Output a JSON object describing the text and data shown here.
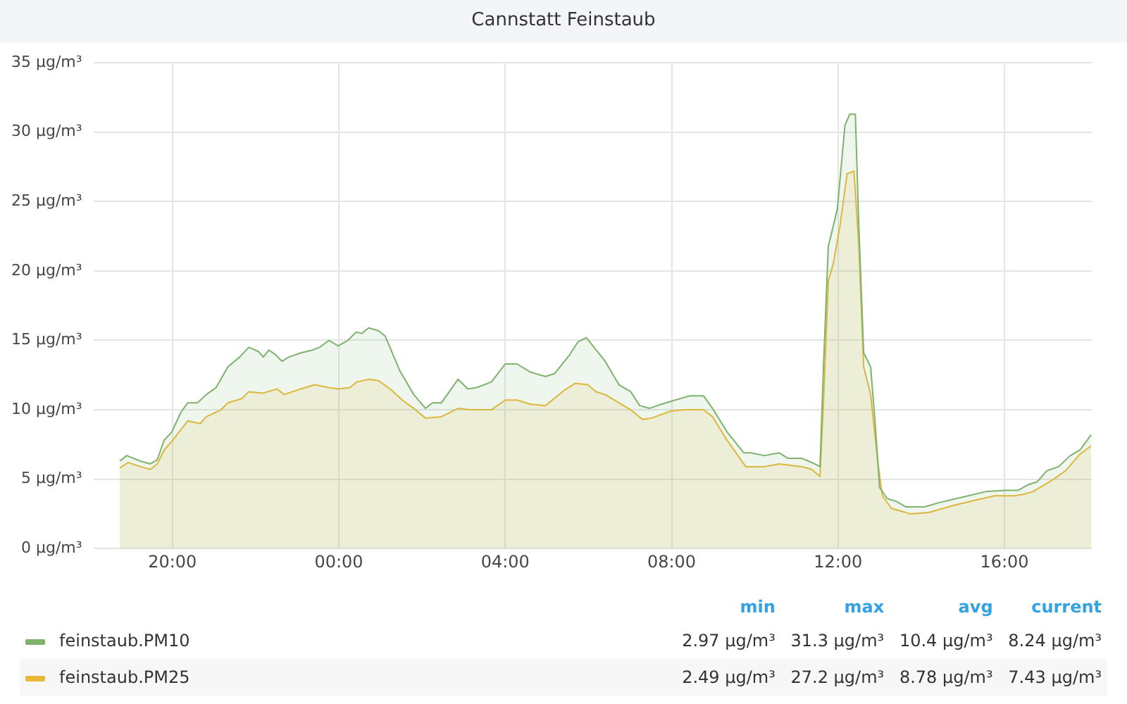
{
  "chart_data": {
    "type": "area",
    "title": "Cannstatt Feinstaub",
    "xlim": [
      "--01-01T18:06",
      "--01-02T18:06"
    ],
    "xticks": [
      {
        "value": "--01-01T20:00",
        "label": "20:00"
      },
      {
        "value": "--01-02T00:00",
        "label": "00:00"
      },
      {
        "value": "--01-02T04:00",
        "label": "04:00"
      },
      {
        "value": "--01-02T08:00",
        "label": "08:00"
      },
      {
        "value": "--01-02T12:00",
        "label": "12:00"
      },
      {
        "value": "--01-02T16:00",
        "label": "16:00"
      }
    ],
    "ylim": [
      0,
      35
    ],
    "yticks": [
      {
        "value": 0,
        "label": "0 µg/m³"
      },
      {
        "value": 5,
        "label": "5 µg/m³"
      },
      {
        "value": 10,
        "label": "10 µg/m³"
      },
      {
        "value": 15,
        "label": "15 µg/m³"
      },
      {
        "value": 20,
        "label": "20 µg/m³"
      },
      {
        "value": 25,
        "label": "25 µg/m³"
      },
      {
        "value": 30,
        "label": "30 µg/m³"
      },
      {
        "value": 35,
        "label": "35 µg/m³"
      }
    ],
    "grid": true,
    "legend": "bottom",
    "marker": "none",
    "line_style": "solid",
    "series": [
      {
        "name": "feinstaub.PM10",
        "color": "#7eb26d",
        "x": [
          "--01-01T18:44",
          "--01-01T18:54",
          "--01-01T19:14",
          "--01-01T19:28",
          "--01-01T19:38",
          "--01-01T19:48",
          "--01-01T19:59",
          "--01-01T20:12",
          "--01-01T20:22",
          "--01-01T20:36",
          "--01-01T20:49",
          "--01-01T21:03",
          "--01-01T21:20",
          "--01-01T21:37",
          "--01-01T21:50",
          "--01-01T22:04",
          "--01-01T22:11",
          "--01-01T22:19",
          "--01-01T22:28",
          "--01-01T22:38",
          "--01-01T22:48",
          "--01-01T23:05",
          "--01-01T23:22",
          "--01-01T23:32",
          "--01-01T23:46",
          "--01-01T23:59",
          "--01-02T00:13",
          "--01-02T00:25",
          "--01-02T00:33",
          "--01-02T00:43",
          "--01-02T00:57",
          "--01-02T01:07",
          "--01-02T01:28",
          "--01-02T01:48",
          "--01-02T02:05",
          "--01-02T02:15",
          "--01-02T02:28",
          "--01-02T02:52",
          "--01-02T03:06",
          "--01-02T03:19",
          "--01-02T03:40",
          "--01-02T04:00",
          "--01-02T04:17",
          "--01-02T04:37",
          "--01-02T04:58",
          "--01-02T05:11",
          "--01-02T05:32",
          "--01-02T05:45",
          "--01-02T05:57",
          "--01-02T06:24",
          "--01-02T06:44",
          "--01-02T07:01",
          "--01-02T07:14",
          "--01-02T07:28",
          "--01-02T07:45",
          "--01-02T08:05",
          "--01-02T08:26",
          "--01-02T08:46",
          "--01-02T08:59",
          "--01-02T09:20",
          "--01-02T09:44",
          "--01-02T09:54",
          "--01-02T10:14",
          "--01-02T10:35",
          "--01-02T10:48",
          "--01-02T11:08",
          "--01-02T11:22",
          "--01-02T11:34",
          "--01-02T11:39",
          "--01-02T11:46",
          "--01-02T11:53",
          "--01-02T11:59",
          "--01-02T12:10",
          "--01-02T12:17",
          "--01-02T12:25",
          "--01-02T12:30",
          "--01-02T12:37",
          "--01-02T12:47",
          "--01-02T12:53",
          "--01-02T13:00",
          "--01-02T13:11",
          "--01-02T13:24",
          "--01-02T13:38",
          "--01-02T14:05",
          "--01-02T14:25",
          "--01-02T14:59",
          "--01-02T15:33",
          "--01-02T16:00",
          "--01-02T16:20",
          "--01-02T16:34",
          "--01-02T16:47",
          "--01-02T17:01",
          "--01-02T17:18",
          "--01-02T17:35",
          "--01-02T17:49",
          "--01-02T18:05"
        ],
        "values": [
          6.3,
          6.7,
          6.3,
          6.1,
          6.4,
          7.8,
          8.4,
          9.8,
          10.5,
          10.5,
          11.1,
          11.6,
          13.1,
          13.8,
          14.5,
          14.2,
          13.8,
          14.3,
          14.0,
          13.5,
          13.8,
          14.1,
          14.3,
          14.5,
          15.0,
          14.6,
          15.0,
          15.6,
          15.5,
          15.9,
          15.7,
          15.3,
          12.8,
          11.1,
          10.1,
          10.5,
          10.5,
          12.2,
          11.5,
          11.6,
          12.0,
          13.3,
          13.3,
          12.7,
          12.4,
          12.6,
          13.9,
          14.9,
          15.2,
          13.5,
          11.8,
          11.3,
          10.3,
          10.1,
          10.4,
          10.7,
          11.0,
          11.0,
          10.1,
          8.4,
          6.9,
          6.9,
          6.7,
          6.9,
          6.5,
          6.5,
          6.2,
          5.9,
          13.1,
          21.8,
          23.2,
          24.5,
          30.5,
          31.3,
          31.3,
          23.2,
          14.1,
          13.1,
          9.4,
          4.4,
          3.6,
          3.4,
          3.0,
          3.0,
          3.3,
          3.7,
          4.1,
          4.2,
          4.2,
          4.6,
          4.8,
          5.6,
          5.9,
          6.7,
          7.1,
          8.2
        ]
      },
      {
        "name": "feinstaub.PM25",
        "color": "#eab839",
        "x": [
          "--01-01T18:44",
          "--01-01T18:56",
          "--01-01T19:14",
          "--01-01T19:28",
          "--01-01T19:38",
          "--01-01T19:48",
          "--01-01T20:02",
          "--01-01T20:22",
          "--01-01T20:40",
          "--01-01T20:49",
          "--01-01T21:10",
          "--01-01T21:20",
          "--01-01T21:40",
          "--01-01T21:50",
          "--01-01T22:11",
          "--01-01T22:31",
          "--01-01T22:41",
          "--01-01T23:05",
          "--01-01T23:25",
          "--01-01T23:46",
          "--01-01T23:59",
          "--01-02T00:16",
          "--01-02T00:26",
          "--01-02T00:43",
          "--01-02T00:57",
          "--01-02T01:14",
          "--01-02T01:34",
          "--01-02T01:48",
          "--01-02T02:05",
          "--01-02T02:28",
          "--01-02T02:52",
          "--01-02T03:09",
          "--01-02T03:40",
          "--01-02T04:00",
          "--01-02T04:17",
          "--01-02T04:37",
          "--01-02T04:58",
          "--01-02T05:25",
          "--01-02T05:41",
          "--01-02T05:59",
          "--01-02T06:11",
          "--01-02T06:24",
          "--01-02T06:44",
          "--01-02T07:01",
          "--01-02T07:18",
          "--01-02T07:31",
          "--01-02T07:59",
          "--01-02T08:19",
          "--01-02T08:46",
          "--01-02T08:59",
          "--01-02T09:20",
          "--01-02T09:47",
          "--01-02T10:14",
          "--01-02T10:35",
          "--01-02T11:08",
          "--01-02T11:22",
          "--01-02T11:34",
          "--01-02T11:39",
          "--01-02T11:46",
          "--01-02T11:53",
          "--01-02T12:03",
          "--01-02T12:13",
          "--01-02T12:23",
          "--01-02T12:30",
          "--01-02T12:37",
          "--01-02T12:47",
          "--01-02T12:57",
          "--01-02T13:04",
          "--01-02T13:17",
          "--01-02T13:44",
          "--01-02T14:11",
          "--01-02T14:46",
          "--01-02T15:19",
          "--01-02T15:46",
          "--01-02T16:14",
          "--01-02T16:27",
          "--01-02T16:41",
          "--01-02T17:08",
          "--01-02T17:28",
          "--01-02T17:49",
          "--01-02T18:05"
        ],
        "values": [
          5.8,
          6.2,
          5.9,
          5.7,
          6.1,
          7.1,
          7.9,
          9.2,
          9.0,
          9.5,
          10.0,
          10.5,
          10.8,
          11.3,
          11.2,
          11.5,
          11.1,
          11.5,
          11.8,
          11.6,
          11.5,
          11.6,
          12.0,
          12.2,
          12.1,
          11.5,
          10.6,
          10.1,
          9.4,
          9.5,
          10.1,
          10.0,
          10.0,
          10.7,
          10.7,
          10.4,
          10.3,
          11.4,
          11.9,
          11.8,
          11.3,
          11.1,
          10.5,
          10.0,
          9.3,
          9.4,
          9.9,
          10.0,
          10.0,
          9.5,
          7.8,
          5.9,
          5.9,
          6.1,
          5.9,
          5.7,
          5.2,
          10.5,
          19.3,
          20.5,
          23.3,
          27.0,
          27.2,
          21.8,
          13.1,
          11.1,
          6.4,
          3.8,
          2.9,
          2.5,
          2.6,
          3.1,
          3.5,
          3.8,
          3.8,
          3.9,
          4.1,
          4.9,
          5.6,
          6.8,
          7.4
        ]
      }
    ],
    "annotations": [
      "min",
      "max",
      "avg",
      "current",
      "2.97 µg/m³",
      "31.3 µg/m³",
      "10.4 µg/m³",
      "8.24 µg/m³",
      "2.49 µg/m³",
      "27.2 µg/m³",
      "8.78 µg/m³",
      "7.43 µg/m³"
    ]
  }
}
